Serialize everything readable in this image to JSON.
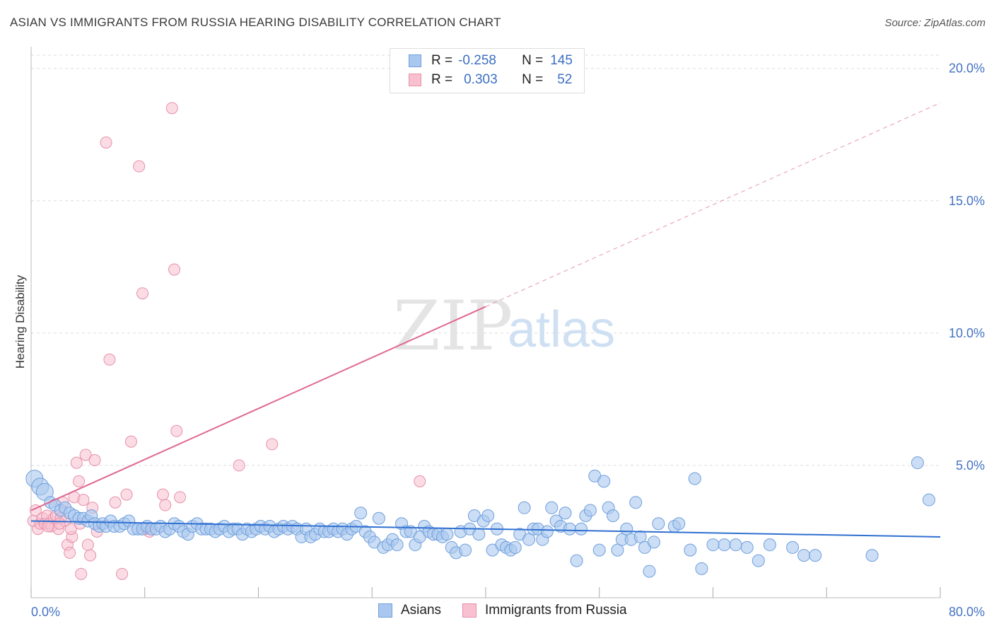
{
  "title": "ASIAN VS IMMIGRANTS FROM RUSSIA HEARING DISABILITY CORRELATION CHART",
  "source": "Source: ZipAtlas.com",
  "watermark": {
    "zip": "ZIP",
    "atlas": "atlas"
  },
  "legend": {
    "rows": [
      {
        "r_label": "R =",
        "r_value": "-0.258",
        "n_label": "N =",
        "n_value": "145"
      },
      {
        "r_label": "R =",
        "r_value": "0.303",
        "n_label": "N =",
        "n_value": "52"
      }
    ]
  },
  "bottom_legend": {
    "asians": "Asians",
    "russia": "Immigrants from Russia"
  },
  "colors": {
    "asian_fill": "#aac8ef",
    "asian_stroke": "#6f9fdc",
    "asian_line": "#3070d0",
    "russia_fill": "#f8c0d0",
    "russia_stroke": "#e690aa",
    "russia_line": "#e06890",
    "tick_text": "#4472c4",
    "grid": "#dddddd"
  },
  "chart_data": {
    "type": "scatter",
    "title": "ASIAN VS IMMIGRANTS FROM RUSSIA HEARING DISABILITY CORRELATION CHART",
    "xlabel": "",
    "ylabel": "Hearing Disability",
    "xlim": [
      0,
      80
    ],
    "ylim": [
      0,
      20.5
    ],
    "x_tick_labels": [
      "0.0%",
      "80.0%"
    ],
    "y_ticks": [
      5,
      10,
      15,
      20
    ],
    "y_tick_labels": [
      "5.0%",
      "10.0%",
      "15.0%",
      "20.0%"
    ],
    "grid": "horizontal-dashed",
    "legend_position": "top-center",
    "series": [
      {
        "name": "Asians",
        "r": -0.258,
        "n": 145,
        "trend": {
          "x": [
            0,
            80
          ],
          "y": [
            2.9,
            2.3
          ]
        },
        "points": [
          [
            0.3,
            4.5
          ],
          [
            0.8,
            4.2
          ],
          [
            1.2,
            4.0
          ],
          [
            1.7,
            3.6
          ],
          [
            2.1,
            3.5
          ],
          [
            2.6,
            3.3
          ],
          [
            3.0,
            3.4
          ],
          [
            3.4,
            3.2
          ],
          [
            3.8,
            3.1
          ],
          [
            4.2,
            3.0
          ],
          [
            4.6,
            3.0
          ],
          [
            5.0,
            2.9
          ],
          [
            5.3,
            3.1
          ],
          [
            5.6,
            2.8
          ],
          [
            6.0,
            2.7
          ],
          [
            6.3,
            2.8
          ],
          [
            6.6,
            2.7
          ],
          [
            7.0,
            2.9
          ],
          [
            7.3,
            2.7
          ],
          [
            7.8,
            2.7
          ],
          [
            8.2,
            2.8
          ],
          [
            8.6,
            2.9
          ],
          [
            9.0,
            2.6
          ],
          [
            9.4,
            2.6
          ],
          [
            9.8,
            2.6
          ],
          [
            10.2,
            2.7
          ],
          [
            10.6,
            2.6
          ],
          [
            11.0,
            2.6
          ],
          [
            11.4,
            2.7
          ],
          [
            11.8,
            2.5
          ],
          [
            12.2,
            2.6
          ],
          [
            12.6,
            2.8
          ],
          [
            13.0,
            2.7
          ],
          [
            13.4,
            2.5
          ],
          [
            13.8,
            2.4
          ],
          [
            14.2,
            2.7
          ],
          [
            14.6,
            2.8
          ],
          [
            15.0,
            2.6
          ],
          [
            15.4,
            2.6
          ],
          [
            15.8,
            2.6
          ],
          [
            16.2,
            2.5
          ],
          [
            16.6,
            2.6
          ],
          [
            17.0,
            2.7
          ],
          [
            17.4,
            2.5
          ],
          [
            17.8,
            2.6
          ],
          [
            18.2,
            2.6
          ],
          [
            18.6,
            2.4
          ],
          [
            19.0,
            2.6
          ],
          [
            19.4,
            2.5
          ],
          [
            19.8,
            2.6
          ],
          [
            20.2,
            2.7
          ],
          [
            20.6,
            2.6
          ],
          [
            21.0,
            2.7
          ],
          [
            21.4,
            2.5
          ],
          [
            21.8,
            2.6
          ],
          [
            22.2,
            2.7
          ],
          [
            22.6,
            2.6
          ],
          [
            23.0,
            2.7
          ],
          [
            23.4,
            2.6
          ],
          [
            23.8,
            2.3
          ],
          [
            24.2,
            2.6
          ],
          [
            24.6,
            2.3
          ],
          [
            25.0,
            2.4
          ],
          [
            25.4,
            2.6
          ],
          [
            25.8,
            2.5
          ],
          [
            26.2,
            2.5
          ],
          [
            26.6,
            2.6
          ],
          [
            27.0,
            2.5
          ],
          [
            27.4,
            2.6
          ],
          [
            27.8,
            2.4
          ],
          [
            28.2,
            2.6
          ],
          [
            28.6,
            2.7
          ],
          [
            29.0,
            3.2
          ],
          [
            29.4,
            2.5
          ],
          [
            29.8,
            2.3
          ],
          [
            30.2,
            2.1
          ],
          [
            30.6,
            3.0
          ],
          [
            31.0,
            1.9
          ],
          [
            31.4,
            2.0
          ],
          [
            31.8,
            2.2
          ],
          [
            32.2,
            2.0
          ],
          [
            32.6,
            2.8
          ],
          [
            33.0,
            2.5
          ],
          [
            33.4,
            2.5
          ],
          [
            33.8,
            2.0
          ],
          [
            34.2,
            2.3
          ],
          [
            34.6,
            2.7
          ],
          [
            35.0,
            2.5
          ],
          [
            35.4,
            2.4
          ],
          [
            35.8,
            2.4
          ],
          [
            36.2,
            2.3
          ],
          [
            36.6,
            2.4
          ],
          [
            37.0,
            1.9
          ],
          [
            37.4,
            1.7
          ],
          [
            37.8,
            2.5
          ],
          [
            38.2,
            1.8
          ],
          [
            38.6,
            2.6
          ],
          [
            39.0,
            3.1
          ],
          [
            39.4,
            2.4
          ],
          [
            39.8,
            2.9
          ],
          [
            40.2,
            3.1
          ],
          [
            40.6,
            1.8
          ],
          [
            41.0,
            2.6
          ],
          [
            41.4,
            2.0
          ],
          [
            41.8,
            1.9
          ],
          [
            42.2,
            1.8
          ],
          [
            42.6,
            1.9
          ],
          [
            43.0,
            2.4
          ],
          [
            43.4,
            3.4
          ],
          [
            43.8,
            2.2
          ],
          [
            44.2,
            2.6
          ],
          [
            44.6,
            2.6
          ],
          [
            45.0,
            2.2
          ],
          [
            45.4,
            2.5
          ],
          [
            45.8,
            3.4
          ],
          [
            46.2,
            2.9
          ],
          [
            46.6,
            2.7
          ],
          [
            47.0,
            3.2
          ],
          [
            47.4,
            2.6
          ],
          [
            48.0,
            1.4
          ],
          [
            48.4,
            2.6
          ],
          [
            48.8,
            3.1
          ],
          [
            49.2,
            3.3
          ],
          [
            49.6,
            4.6
          ],
          [
            50.0,
            1.8
          ],
          [
            50.4,
            4.4
          ],
          [
            50.8,
            3.4
          ],
          [
            51.2,
            3.1
          ],
          [
            51.6,
            1.8
          ],
          [
            52.0,
            2.2
          ],
          [
            52.4,
            2.6
          ],
          [
            52.8,
            2.2
          ],
          [
            53.2,
            3.6
          ],
          [
            53.6,
            2.3
          ],
          [
            54.0,
            1.9
          ],
          [
            54.4,
            1.0
          ],
          [
            54.8,
            2.1
          ],
          [
            55.2,
            2.8
          ],
          [
            56.6,
            2.7
          ],
          [
            57.0,
            2.8
          ],
          [
            58.0,
            1.8
          ],
          [
            58.4,
            4.5
          ],
          [
            60.0,
            2.0
          ],
          [
            61.0,
            2.0
          ],
          [
            62.0,
            2.0
          ],
          [
            63.0,
            1.9
          ],
          [
            64.0,
            1.4
          ],
          [
            65.0,
            2.0
          ],
          [
            67.0,
            1.9
          ],
          [
            68.0,
            1.6
          ],
          [
            69.0,
            1.6
          ],
          [
            74.0,
            1.6
          ],
          [
            78.0,
            5.1
          ],
          [
            79.0,
            3.7
          ],
          [
            59.0,
            1.1
          ]
        ]
      },
      {
        "name": "Immigrants from Russia",
        "r": 0.303,
        "n": 52,
        "trend": {
          "x": [
            0,
            40
          ],
          "y": [
            3.3,
            11.0
          ]
        },
        "trend_dashed": {
          "x": [
            40,
            80
          ],
          "y": [
            11.0,
            18.7
          ]
        },
        "points": [
          [
            0.2,
            2.9
          ],
          [
            0.4,
            3.3
          ],
          [
            0.6,
            2.6
          ],
          [
            0.8,
            2.8
          ],
          [
            1.0,
            3.0
          ],
          [
            1.2,
            2.8
          ],
          [
            1.4,
            3.1
          ],
          [
            1.6,
            2.8
          ],
          [
            1.8,
            2.7
          ],
          [
            2.0,
            3.0
          ],
          [
            2.2,
            3.1
          ],
          [
            2.4,
            2.6
          ],
          [
            2.6,
            3.0
          ],
          [
            2.8,
            3.6
          ],
          [
            3.0,
            2.9
          ],
          [
            3.2,
            2.0
          ],
          [
            3.4,
            1.7
          ],
          [
            3.6,
            2.3
          ],
          [
            3.8,
            3.8
          ],
          [
            4.0,
            5.1
          ],
          [
            4.2,
            4.4
          ],
          [
            4.4,
            0.9
          ],
          [
            4.6,
            3.7
          ],
          [
            4.8,
            5.4
          ],
          [
            5.0,
            2.0
          ],
          [
            5.2,
            1.6
          ],
          [
            5.4,
            3.4
          ],
          [
            5.6,
            5.2
          ],
          [
            5.8,
            2.5
          ],
          [
            6.6,
            17.2
          ],
          [
            6.9,
            9.0
          ],
          [
            7.4,
            3.6
          ],
          [
            8.0,
            0.9
          ],
          [
            8.4,
            3.9
          ],
          [
            8.8,
            5.9
          ],
          [
            9.5,
            16.3
          ],
          [
            9.8,
            11.5
          ],
          [
            10.1,
            2.6
          ],
          [
            10.4,
            2.5
          ],
          [
            11.6,
            3.9
          ],
          [
            11.8,
            3.5
          ],
          [
            12.4,
            18.5
          ],
          [
            12.6,
            12.4
          ],
          [
            12.8,
            6.3
          ],
          [
            13.1,
            3.8
          ],
          [
            18.3,
            5.0
          ],
          [
            21.2,
            5.8
          ],
          [
            34.2,
            4.4
          ],
          [
            1.5,
            2.7
          ],
          [
            2.5,
            2.8
          ],
          [
            3.5,
            2.6
          ],
          [
            4.3,
            2.8
          ]
        ]
      }
    ]
  }
}
